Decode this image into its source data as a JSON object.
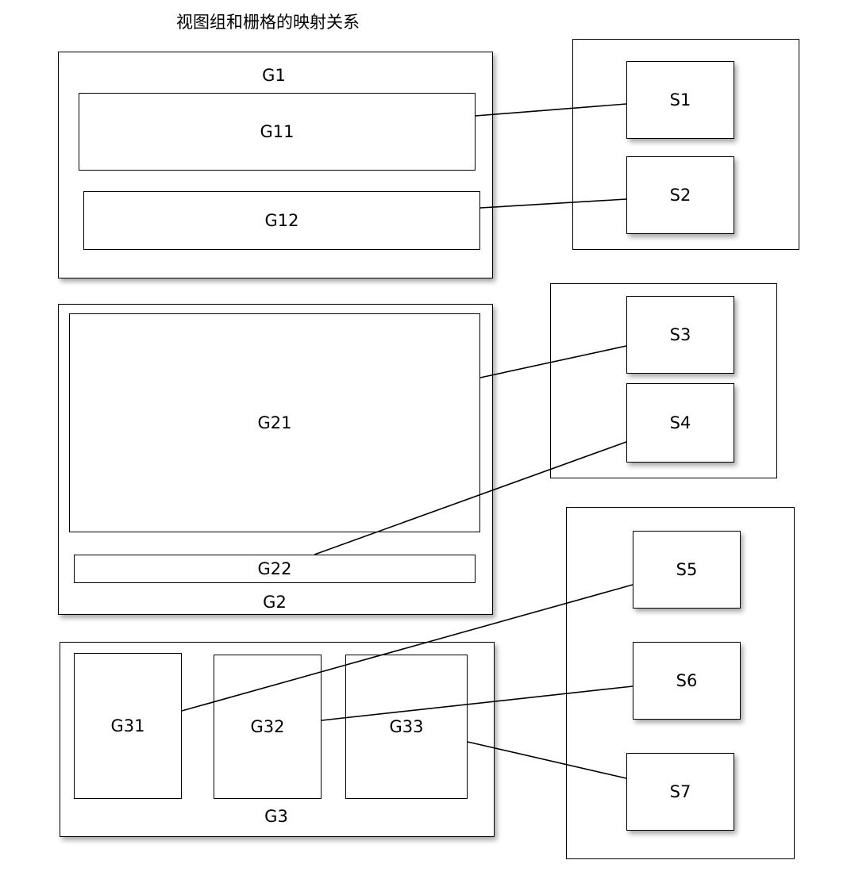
{
  "title": "视图组和栅格的映射关系",
  "groups": {
    "g1": {
      "label": "G1"
    },
    "g11": {
      "label": "G11"
    },
    "g12": {
      "label": "G12"
    },
    "g2": {
      "label": "G2"
    },
    "g21": {
      "label": "G21"
    },
    "g22": {
      "label": "G22"
    },
    "g3": {
      "label": "G3"
    },
    "g31": {
      "label": "G31"
    },
    "g32": {
      "label": "G32"
    },
    "g33": {
      "label": "G33"
    }
  },
  "strips": {
    "s1": {
      "label": "S1"
    },
    "s2": {
      "label": "S2"
    },
    "s3": {
      "label": "S3"
    },
    "s4": {
      "label": "S4"
    },
    "s5": {
      "label": "S5"
    },
    "s6": {
      "label": "S6"
    },
    "s7": {
      "label": "S7"
    }
  },
  "mappings": [
    {
      "from": "G11",
      "to": "S1"
    },
    {
      "from": "G12",
      "to": "S2"
    },
    {
      "from": "G21",
      "to": "S3"
    },
    {
      "from": "G22",
      "to": "S4"
    },
    {
      "from": "G31",
      "to": "S5"
    },
    {
      "from": "G32",
      "to": "S6"
    },
    {
      "from": "G33",
      "to": "S7"
    }
  ]
}
